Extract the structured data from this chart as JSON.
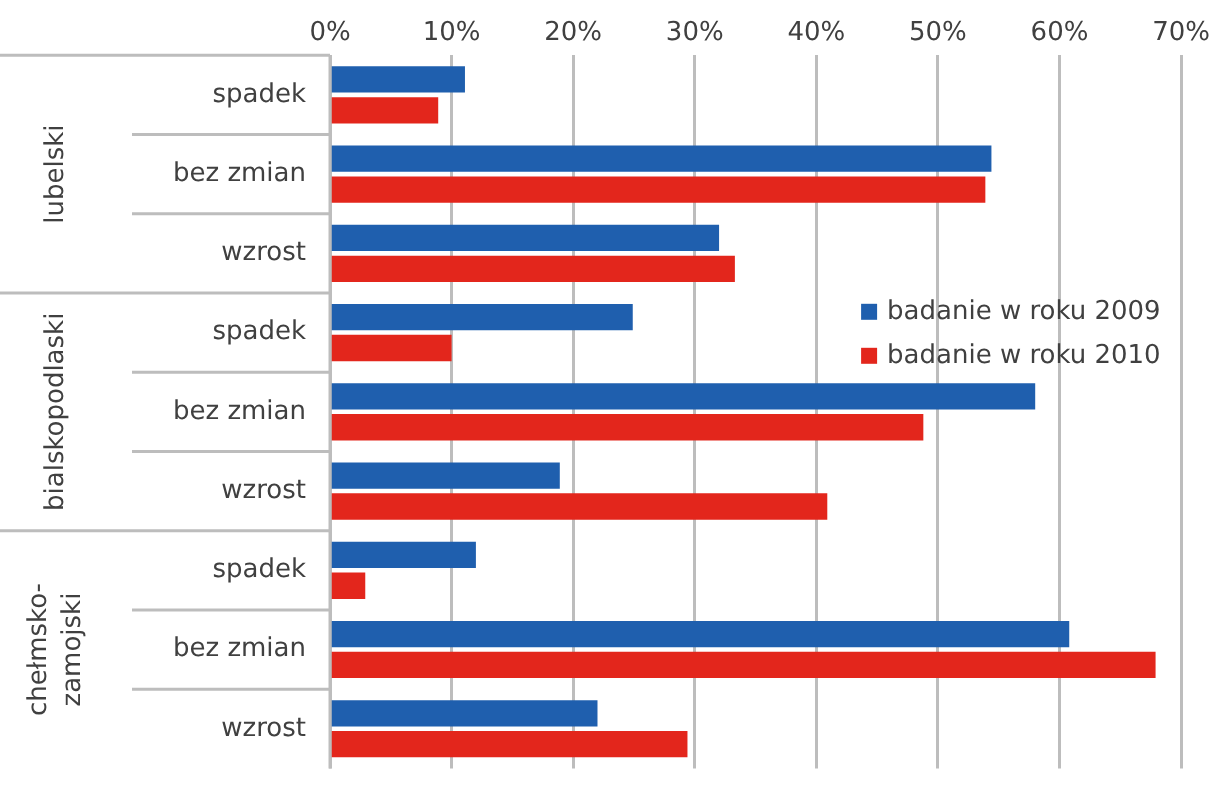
{
  "chart_data": {
    "type": "bar",
    "orientation": "horizontal",
    "categories": [
      "spadek",
      "bez zmian",
      "wzrost",
      "spadek",
      "bez zmian",
      "wzrost",
      "spadek",
      "bez zmian",
      "wzrost"
    ],
    "annotations": [
      "lubelski",
      "bialskopodlaski",
      "chełmsko-zamojski"
    ],
    "series": [
      {
        "name": "badanie w roku 2009",
        "color": "#1f5fae",
        "values": [
          11.1,
          54.4,
          32.0,
          24.9,
          58.0,
          18.9,
          12.0,
          60.8,
          22.0
        ]
      },
      {
        "name": "badanie w roku 2010",
        "color": "#e3261c",
        "values": [
          8.9,
          53.9,
          33.3,
          10.0,
          48.8,
          40.9,
          2.9,
          67.9,
          29.4
        ]
      }
    ],
    "xlim": [
      0,
      70
    ],
    "xticks": [
      {
        "value": 0,
        "label": "0%"
      },
      {
        "value": 10,
        "label": "10%"
      },
      {
        "value": 20,
        "label": "20%"
      },
      {
        "value": 30,
        "label": "30%"
      },
      {
        "value": 40,
        "label": "40%"
      },
      {
        "value": 50,
        "label": "50%"
      },
      {
        "value": 60,
        "label": "60%"
      },
      {
        "value": 70,
        "label": "70%"
      }
    ],
    "grid": "x",
    "legend": "right"
  }
}
